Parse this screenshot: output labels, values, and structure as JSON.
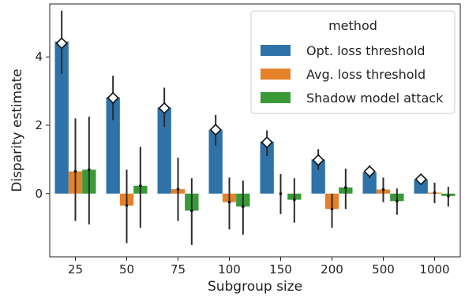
{
  "chart_data": {
    "type": "bar",
    "xlabel": "Subgroup size",
    "ylabel": "Disparity estimate",
    "categories": [
      "25",
      "50",
      "75",
      "100",
      "150",
      "200",
      "500",
      "1000"
    ],
    "ylim": [
      -1.85,
      5.55
    ],
    "yticks": [
      0,
      2,
      4
    ],
    "grid": false,
    "legend": {
      "title": "method",
      "placement": "top-right"
    },
    "series": [
      {
        "name": "Opt. loss threshold",
        "color": "#2f72a8",
        "values": [
          4.45,
          2.82,
          2.52,
          1.87,
          1.52,
          1.0,
          0.63,
          0.42
        ],
        "err_low": [
          3.5,
          2.15,
          1.95,
          1.4,
          1.1,
          0.7,
          0.45,
          0.3
        ],
        "err_high": [
          5.35,
          3.45,
          3.1,
          2.3,
          1.85,
          1.3,
          0.82,
          0.55
        ],
        "marker_values": [
          4.4,
          2.8,
          2.5,
          1.87,
          1.5,
          0.98,
          0.65,
          0.42
        ]
      },
      {
        "name": "Avg. loss threshold",
        "color": "#e58128",
        "values": [
          0.65,
          -0.35,
          0.13,
          -0.25,
          0.0,
          -0.45,
          0.12,
          0.03
        ],
        "err_low": [
          -0.8,
          -1.45,
          -0.8,
          -1.05,
          -0.6,
          -1.0,
          -0.25,
          -0.28
        ],
        "err_high": [
          2.2,
          0.7,
          1.05,
          0.47,
          0.57,
          0.0,
          0.47,
          0.32
        ]
      },
      {
        "name": "Shadow model attack",
        "color": "#3a9a38",
        "values": [
          0.7,
          0.23,
          -0.5,
          -0.38,
          -0.18,
          0.18,
          -0.22,
          -0.07
        ],
        "err_low": [
          -0.9,
          -1.0,
          -1.5,
          -1.2,
          -0.85,
          -0.45,
          -0.62,
          -0.38
        ],
        "err_high": [
          2.25,
          1.37,
          0.45,
          0.38,
          0.45,
          0.73,
          0.15,
          0.2
        ]
      }
    ]
  }
}
